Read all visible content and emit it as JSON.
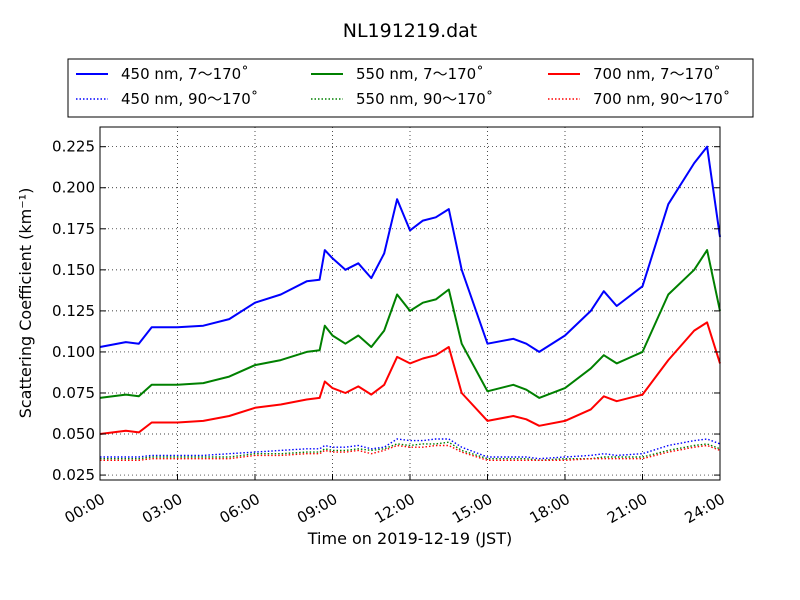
{
  "chart_data": {
    "type": "line",
    "title": "NL191219.dat",
    "xlabel": "Time on 2019-12-19 (JST)",
    "ylabel": "Scattering Coefficient (km⁻¹)",
    "xlim": [
      0,
      24
    ],
    "ylim": [
      0.022,
      0.237
    ],
    "x_tick_labels": [
      "00:00",
      "03:00",
      "06:00",
      "09:00",
      "12:00",
      "15:00",
      "18:00",
      "21:00",
      "24:00"
    ],
    "y_ticks": [
      "0.025",
      "0.050",
      "0.075",
      "0.100",
      "0.125",
      "0.150",
      "0.175",
      "0.200",
      "0.225"
    ],
    "grid": true,
    "legend_position": "top",
    "x": [
      0,
      1,
      1.5,
      2,
      3,
      4,
      5,
      6,
      7,
      8,
      8.5,
      8.7,
      9,
      9.5,
      10,
      10.5,
      11,
      11.5,
      12,
      12.5,
      13,
      13.5,
      14,
      15,
      16,
      16.5,
      17,
      18,
      19,
      19.5,
      20,
      21,
      22,
      23,
      23.5,
      24
    ],
    "series": [
      {
        "name": "450 nm, 7～170˚",
        "color": "#0000ff",
        "style": "solid",
        "values": [
          0.103,
          0.106,
          0.105,
          0.115,
          0.115,
          0.116,
          0.12,
          0.13,
          0.135,
          0.143,
          0.144,
          0.162,
          0.157,
          0.15,
          0.154,
          0.145,
          0.16,
          0.193,
          0.174,
          0.18,
          0.182,
          0.187,
          0.15,
          0.105,
          0.108,
          0.105,
          0.1,
          0.11,
          0.125,
          0.137,
          0.128,
          0.14,
          0.19,
          0.215,
          0.225,
          0.17
        ]
      },
      {
        "name": "550 nm, 7～170˚",
        "color": "#008000",
        "style": "solid",
        "values": [
          0.072,
          0.074,
          0.073,
          0.08,
          0.08,
          0.081,
          0.085,
          0.092,
          0.095,
          0.1,
          0.101,
          0.116,
          0.11,
          0.105,
          0.11,
          0.103,
          0.113,
          0.135,
          0.125,
          0.13,
          0.132,
          0.138,
          0.105,
          0.076,
          0.08,
          0.077,
          0.072,
          0.078,
          0.09,
          0.098,
          0.093,
          0.1,
          0.135,
          0.15,
          0.162,
          0.125
        ]
      },
      {
        "name": "700 nm, 7～170˚",
        "color": "#ff0000",
        "style": "solid",
        "values": [
          0.05,
          0.052,
          0.051,
          0.057,
          0.057,
          0.058,
          0.061,
          0.066,
          0.068,
          0.071,
          0.072,
          0.082,
          0.078,
          0.075,
          0.079,
          0.074,
          0.08,
          0.097,
          0.093,
          0.096,
          0.098,
          0.103,
          0.075,
          0.058,
          0.061,
          0.059,
          0.055,
          0.058,
          0.065,
          0.073,
          0.07,
          0.074,
          0.095,
          0.113,
          0.118,
          0.093
        ]
      },
      {
        "name": "450 nm, 90～170˚",
        "color": "#0000ff",
        "style": "dotted",
        "values": [
          0.036,
          0.036,
          0.036,
          0.037,
          0.037,
          0.037,
          0.038,
          0.039,
          0.04,
          0.041,
          0.041,
          0.043,
          0.042,
          0.042,
          0.043,
          0.041,
          0.042,
          0.047,
          0.046,
          0.046,
          0.047,
          0.047,
          0.042,
          0.036,
          0.036,
          0.036,
          0.035,
          0.036,
          0.037,
          0.038,
          0.037,
          0.038,
          0.043,
          0.046,
          0.047,
          0.044
        ]
      },
      {
        "name": "550 nm, 90～170˚",
        "color": "#008000",
        "style": "dotted",
        "values": [
          0.035,
          0.035,
          0.035,
          0.036,
          0.036,
          0.036,
          0.036,
          0.038,
          0.038,
          0.039,
          0.039,
          0.041,
          0.04,
          0.04,
          0.041,
          0.04,
          0.041,
          0.044,
          0.043,
          0.044,
          0.044,
          0.045,
          0.04,
          0.035,
          0.035,
          0.035,
          0.034,
          0.035,
          0.035,
          0.036,
          0.036,
          0.036,
          0.04,
          0.043,
          0.044,
          0.041
        ]
      },
      {
        "name": "700 nm, 90～170˚",
        "color": "#ff0000",
        "style": "dotted",
        "values": [
          0.034,
          0.034,
          0.034,
          0.035,
          0.035,
          0.035,
          0.035,
          0.037,
          0.037,
          0.038,
          0.038,
          0.04,
          0.039,
          0.039,
          0.04,
          0.038,
          0.04,
          0.043,
          0.042,
          0.042,
          0.043,
          0.043,
          0.039,
          0.034,
          0.034,
          0.034,
          0.034,
          0.034,
          0.035,
          0.035,
          0.035,
          0.035,
          0.039,
          0.042,
          0.043,
          0.04
        ]
      }
    ]
  }
}
